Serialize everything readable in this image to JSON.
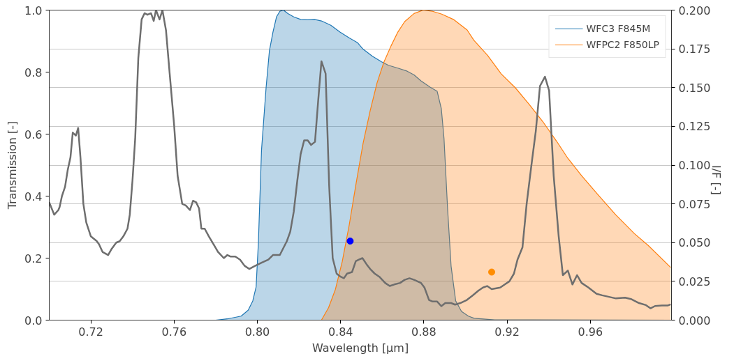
{
  "chart_data": {
    "type": "area",
    "xlabel": "Wavelength [μm]",
    "ylabel": "Transmission [-]",
    "y2label": "I/F [-]",
    "xlim": [
      0.7,
      0.999
    ],
    "xticks": [
      0.72,
      0.76,
      {
        "value": 0.8,
        "label": "0.80"
      },
      0.84,
      0.88,
      0.92,
      0.96
    ],
    "ylim": [
      0,
      1
    ],
    "yticks": [
      {
        "value": 0,
        "label": "0.0"
      },
      0.2,
      0.4,
      0.6,
      0.8,
      {
        "value": 1,
        "label": "1.0"
      }
    ],
    "y2lim": [
      0,
      0.2
    ],
    "y2ticks": [
      {
        "value": 0,
        "label": "0.000"
      },
      0.025,
      {
        "value": 0.05,
        "label": "0.050"
      },
      0.075,
      {
        "value": 0.1,
        "label": "0.100"
      },
      0.125,
      {
        "value": 0.15,
        "label": "0.150"
      },
      0.175,
      {
        "value": 0.2,
        "label": "0.200"
      }
    ],
    "grid": "y2",
    "legend": "top right",
    "series": [
      {
        "name": "WFC3 F845M",
        "color": "#1f77b4",
        "x": [
          0.7,
          0.78,
          0.7856,
          0.7922,
          0.7956,
          0.7978,
          0.7994,
          0.8005,
          0.802,
          0.8042,
          0.8058,
          0.8075,
          0.8092,
          0.8108,
          0.8125,
          0.8147,
          0.8175,
          0.8208,
          0.8242,
          0.8275,
          0.8308,
          0.8353,
          0.8397,
          0.8442,
          0.8481,
          0.8508,
          0.8553,
          0.8597,
          0.863,
          0.8675,
          0.872,
          0.8753,
          0.8786,
          0.8831,
          0.8864,
          0.8884,
          0.8897,
          0.8914,
          0.8931,
          0.8953,
          0.8981,
          0.9014,
          0.9042,
          0.914,
          0.999
        ],
        "values": [
          0,
          0,
          0.004,
          0.013,
          0.032,
          0.062,
          0.107,
          0.25,
          0.548,
          0.75,
          0.869,
          0.929,
          0.978,
          0.996,
          1.0,
          0.989,
          0.978,
          0.97,
          0.969,
          0.97,
          0.965,
          0.951,
          0.929,
          0.91,
          0.895,
          0.874,
          0.851,
          0.833,
          0.822,
          0.813,
          0.803,
          0.791,
          0.772,
          0.751,
          0.738,
          0.682,
          0.585,
          0.361,
          0.174,
          0.062,
          0.028,
          0.013,
          0.006,
          0.001,
          0
        ]
      },
      {
        "name": "WFPC2 F850LP",
        "color": "#ff7f0e",
        "x": [
          0.7,
          0.8308,
          0.8342,
          0.8375,
          0.8408,
          0.8442,
          0.8475,
          0.8508,
          0.8542,
          0.8575,
          0.8608,
          0.8642,
          0.8675,
          0.8708,
          0.8753,
          0.8797,
          0.8842,
          0.8886,
          0.8942,
          0.9008,
          0.904,
          0.9106,
          0.9172,
          0.9239,
          0.9305,
          0.9371,
          0.9437,
          0.9492,
          0.9558,
          0.9635,
          0.9723,
          0.9812,
          0.9878,
          0.9986
        ],
        "values": [
          0,
          0,
          0.04,
          0.099,
          0.189,
          0.309,
          0.443,
          0.57,
          0.675,
          0.765,
          0.832,
          0.884,
          0.929,
          0.963,
          0.989,
          1.0,
          0.996,
          0.987,
          0.97,
          0.936,
          0.903,
          0.854,
          0.794,
          0.75,
          0.697,
          0.641,
          0.578,
          0.522,
          0.466,
          0.406,
          0.339,
          0.279,
          0.241,
          0.17
        ]
      },
      {
        "type": "line",
        "axis": "y2",
        "color": "#6e6e6e",
        "x": [
          0.7,
          0.7024,
          0.7044,
          0.705,
          0.7061,
          0.7076,
          0.7089,
          0.7102,
          0.7113,
          0.7128,
          0.7139,
          0.715,
          0.7164,
          0.7178,
          0.72,
          0.7228,
          0.7239,
          0.7256,
          0.7283,
          0.73,
          0.7322,
          0.7339,
          0.7356,
          0.7376,
          0.7387,
          0.74,
          0.7413,
          0.7428,
          0.7444,
          0.7458,
          0.7472,
          0.7489,
          0.7502,
          0.7513,
          0.753,
          0.7544,
          0.7561,
          0.758,
          0.76,
          0.7617,
          0.7639,
          0.7656,
          0.7676,
          0.7691,
          0.7706,
          0.772,
          0.7731,
          0.7747,
          0.7767,
          0.7789,
          0.7811,
          0.7839,
          0.7856,
          0.7872,
          0.7894,
          0.7917,
          0.7939,
          0.7961,
          0.7989,
          0.802,
          0.8053,
          0.8075,
          0.8108,
          0.8142,
          0.8158,
          0.8175,
          0.8192,
          0.8208,
          0.8225,
          0.8242,
          0.8258,
          0.8277,
          0.8292,
          0.8308,
          0.8328,
          0.8345,
          0.8362,
          0.8381,
          0.84,
          0.8416,
          0.8431,
          0.8455,
          0.8473,
          0.8488,
          0.8505,
          0.8525,
          0.8542,
          0.8564,
          0.8586,
          0.8614,
          0.8636,
          0.8658,
          0.8686,
          0.8708,
          0.8731,
          0.8753,
          0.8786,
          0.8803,
          0.8825,
          0.8842,
          0.8864,
          0.8884,
          0.8903,
          0.8931,
          0.895,
          0.8975,
          0.9007,
          0.9035,
          0.9062,
          0.9084,
          0.9104,
          0.9126,
          0.9167,
          0.9189,
          0.9211,
          0.9233,
          0.925,
          0.9274,
          0.9294,
          0.9316,
          0.9338,
          0.9358,
          0.9382,
          0.9402,
          0.9424,
          0.9448,
          0.9468,
          0.9492,
          0.9514,
          0.9536,
          0.9558,
          0.9591,
          0.963,
          0.9657,
          0.969,
          0.9723,
          0.9767,
          0.9795,
          0.9834,
          0.9867,
          0.9889,
          0.9911,
          0.9944,
          0.9971,
          0.9986
        ],
        "values": [
          0.076,
          0.068,
          0.071,
          0.073,
          0.08,
          0.086,
          0.097,
          0.105,
          0.121,
          0.119,
          0.124,
          0.105,
          0.075,
          0.063,
          0.054,
          0.051,
          0.049,
          0.044,
          0.042,
          0.046,
          0.05,
          0.051,
          0.054,
          0.059,
          0.068,
          0.09,
          0.117,
          0.169,
          0.194,
          0.198,
          0.197,
          0.198,
          0.193,
          0.2,
          0.194,
          0.2,
          0.187,
          0.157,
          0.126,
          0.093,
          0.075,
          0.074,
          0.071,
          0.077,
          0.076,
          0.072,
          0.059,
          0.059,
          0.054,
          0.049,
          0.044,
          0.04,
          0.042,
          0.041,
          0.041,
          0.039,
          0.035,
          0.033,
          0.035,
          0.037,
          0.039,
          0.042,
          0.042,
          0.051,
          0.057,
          0.07,
          0.09,
          0.107,
          0.116,
          0.116,
          0.113,
          0.115,
          0.141,
          0.167,
          0.159,
          0.087,
          0.04,
          0.03,
          0.028,
          0.027,
          0.03,
          0.031,
          0.038,
          0.039,
          0.04,
          0.036,
          0.033,
          0.03,
          0.028,
          0.024,
          0.022,
          0.023,
          0.024,
          0.026,
          0.027,
          0.026,
          0.024,
          0.021,
          0.013,
          0.012,
          0.012,
          0.009,
          0.011,
          0.011,
          0.01,
          0.011,
          0.013,
          0.016,
          0.019,
          0.021,
          0.022,
          0.02,
          0.021,
          0.023,
          0.025,
          0.03,
          0.039,
          0.047,
          0.075,
          0.099,
          0.122,
          0.151,
          0.157,
          0.148,
          0.093,
          0.054,
          0.029,
          0.032,
          0.023,
          0.029,
          0.024,
          0.021,
          0.017,
          0.016,
          0.015,
          0.014,
          0.0145,
          0.0136,
          0.011,
          0.0097,
          0.0076,
          0.0091,
          0.0094,
          0.0094,
          0.0102
        ]
      },
      {
        "type": "scatter",
        "axis": "y2",
        "marker": "circle",
        "color": "#0000ff",
        "x": [
          0.8446
        ],
        "values": [
          0.051
        ]
      },
      {
        "type": "scatter",
        "axis": "y2",
        "marker": "circle",
        "color": "#ff8c00",
        "x": [
          0.9126
        ],
        "values": [
          0.031
        ]
      }
    ]
  }
}
